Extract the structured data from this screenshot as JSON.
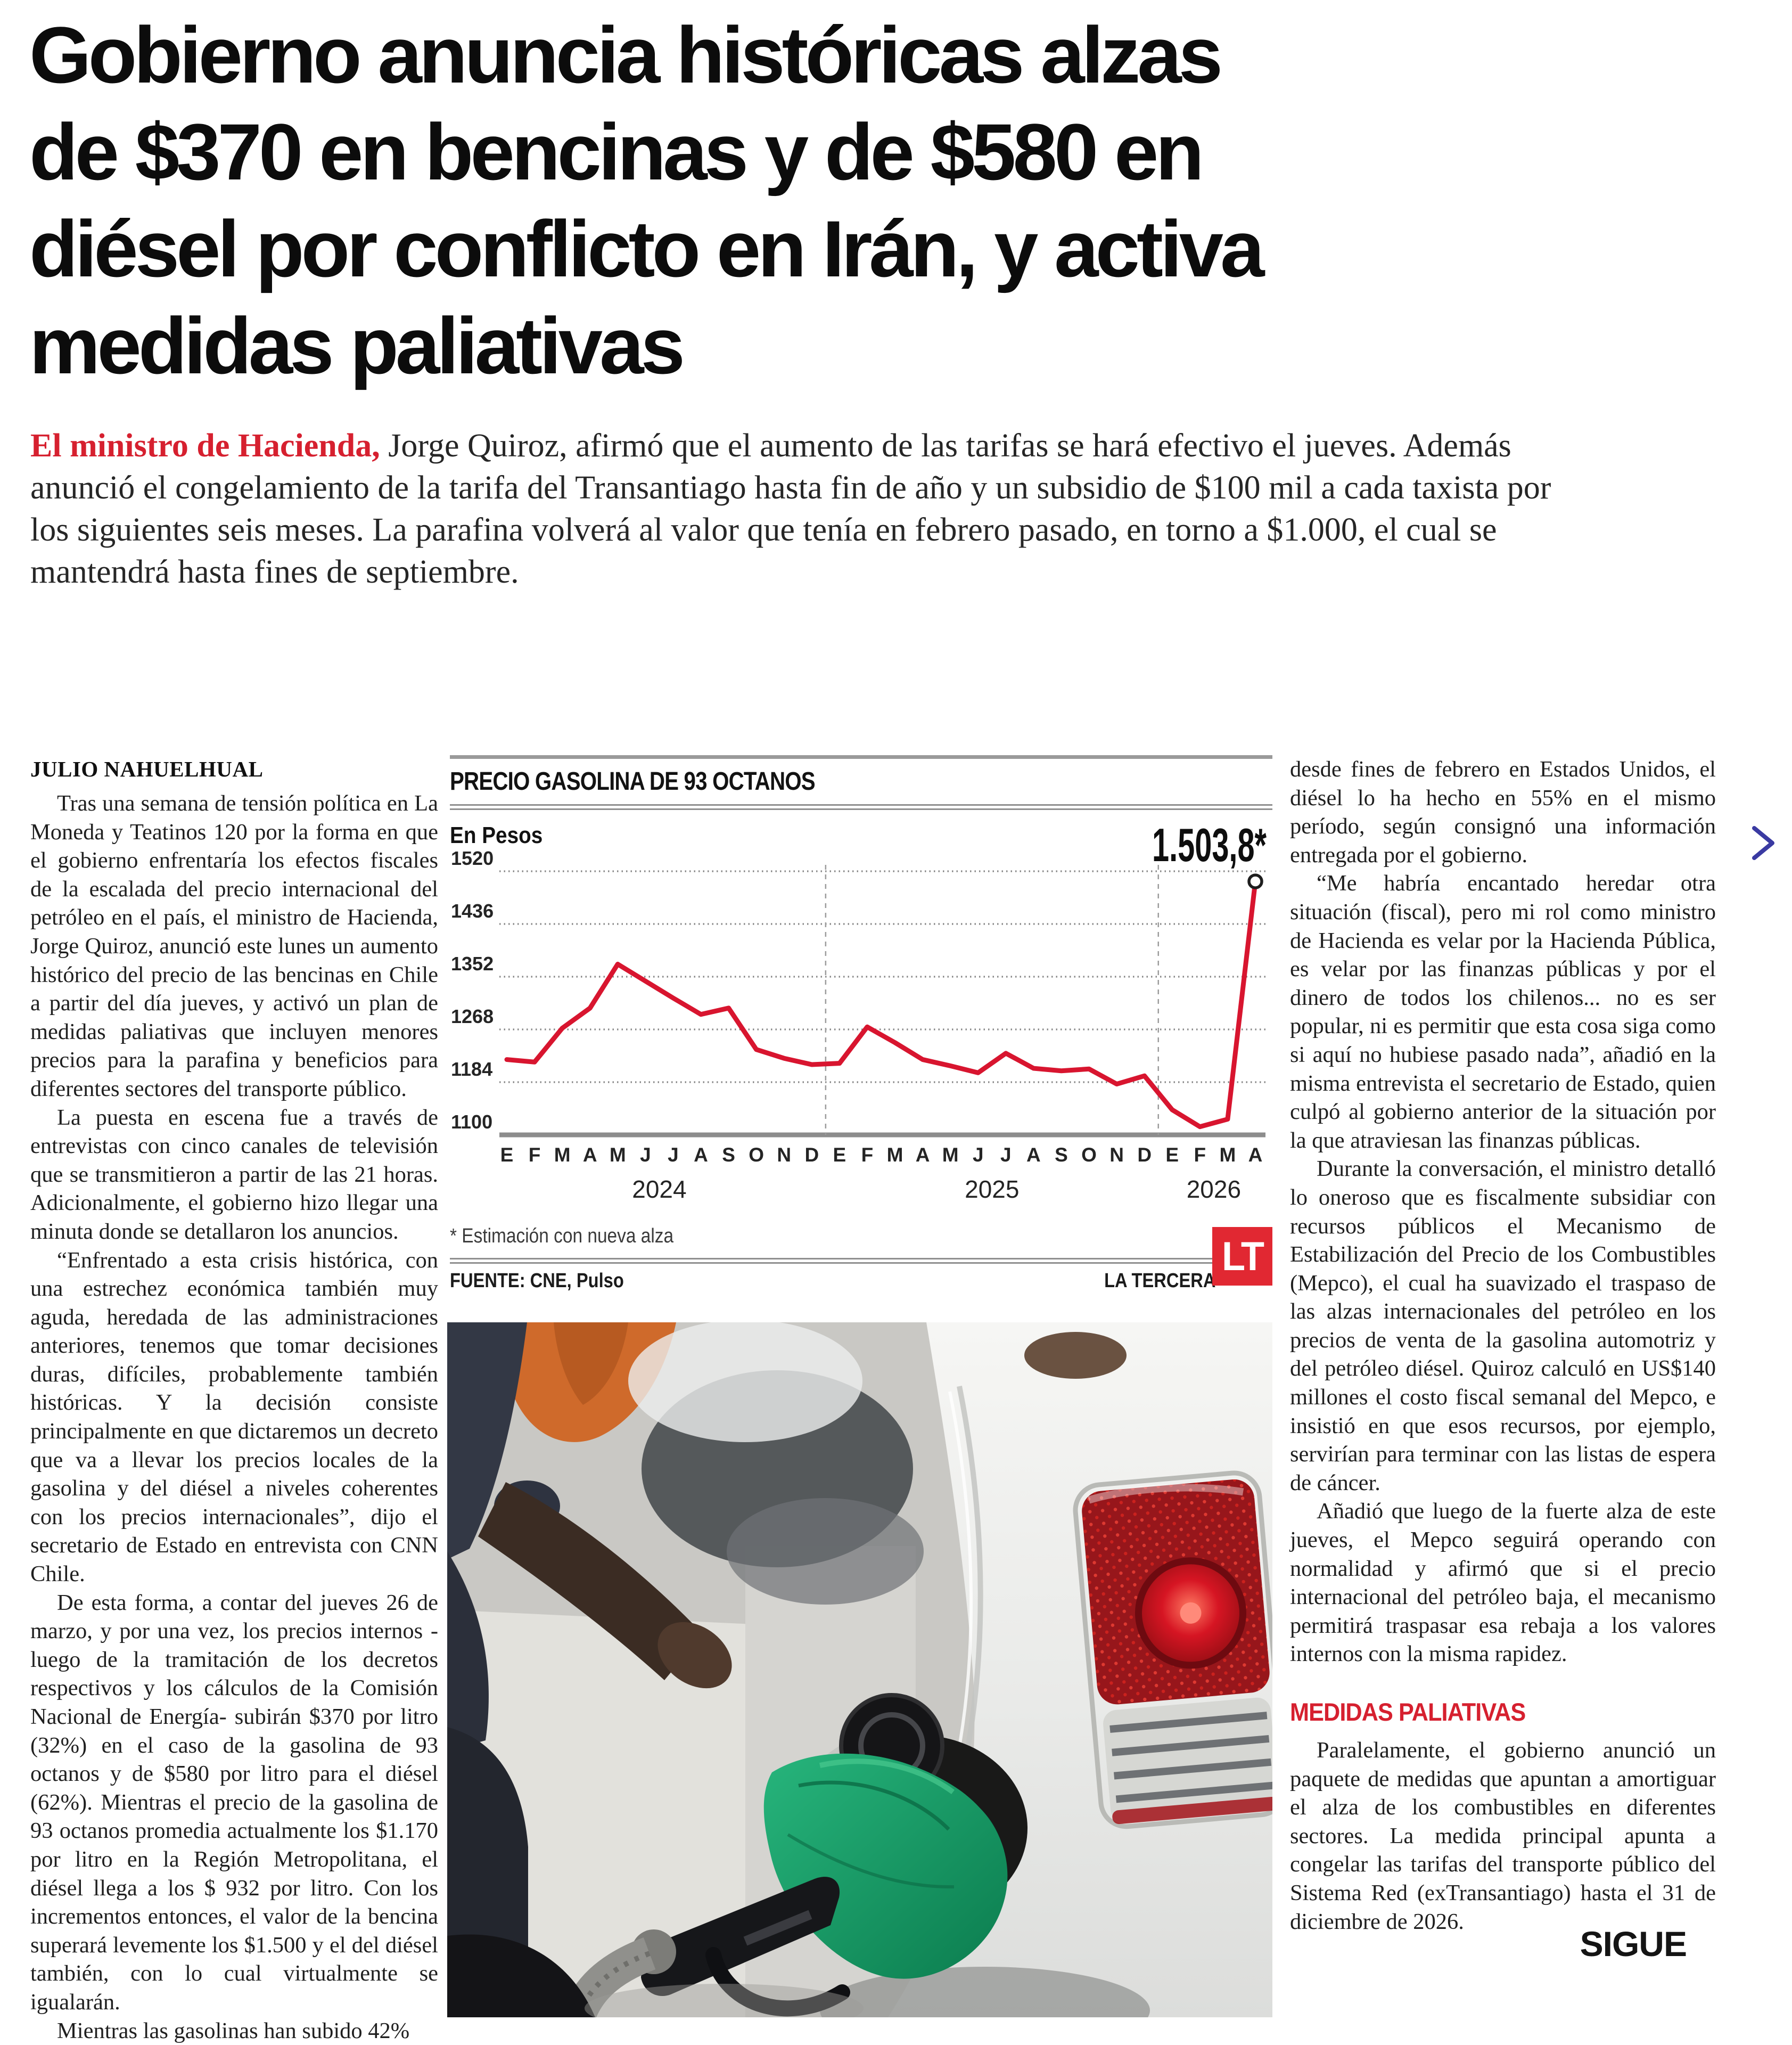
{
  "article": {
    "headline_lines": [
      "Gobierno anuncia históricas alzas",
      "de $370 en bencinas y de $580 en",
      "diésel por conflicto en Irán, y activa",
      "medidas paliativas"
    ],
    "lead_highlight": "El ministro de Hacienda,",
    "lead_rest": "Jorge Quiroz, afirmó que el aumento de las tarifas se hará efectivo el jueves. Además anunció el congelamiento de la tarifa del Transantiago hasta fin de año y un subsidio de $100 mil a cada taxista por los siguientes seis meses. La parafina volverá al valor que tenía en febrero pasado, en torno a $1.000, el cual se mantendrá hasta fines de septiembre.",
    "byline": "JULIO NAHUELHUAL",
    "left_column": {
      "paragraphs": [
        "Tras una semana de tensión política en La Moneda y Teatinos 120 por la forma en que el gobierno enfrentaría los efectos fiscales de la escalada del precio internacional del petróleo en el país, el ministro de Hacienda, Jorge Quiroz, anunció este lunes un aumento histórico del precio de las bencinas en Chile a partir del día jueves, y activó un plan de medidas paliativas que incluyen menores precios para la parafina y beneficios para diferentes sectores del transporte público.",
        "La puesta en escena fue a través de entrevistas con cinco canales de televisión que se transmitieron a partir de las 21 horas. Adicionalmente, el gobierno hizo llegar una minuta donde se detallaron los anuncios.",
        "“Enfrentado a esta crisis histórica, con una estrechez económica también muy aguda, heredada de las administraciones anteriores, tenemos que tomar decisiones duras, difíciles, probablemente también históricas. Y la decisión consiste principalmente en que dictaremos un decreto que va a llevar los precios locales de la gasolina y del diésel a niveles coherentes con los precios internacionales”, dijo el secretario de Estado en entrevista con CNN Chile.",
        "De esta forma, a contar del jueves 26 de marzo, y por una vez, los precios internos -luego de la tramitación de los decretos respectivos y los cálculos de la Comisión Nacional de Energía- subirán $370 por litro (32%) en el caso de la gasolina de 93 octanos y de $580 por litro para el diésel (62%). Mientras el precio de la gasolina de 93 octanos promedia actualmente los $1.170 por litro en la Región Metropolitana, el diésel llega a los $ 932 por litro. Con los incrementos entonces, el valor de la bencina superará levemente los $1.500 y el del diésel también, con lo cual virtualmente se igualarán.",
        "Mientras las gasolinas han subido 42%"
      ]
    },
    "right_column": {
      "paragraphs_top": [
        "desde fines de febrero en Estados Unidos, el diésel lo ha hecho en 55% en el mismo período, según consignó una información entregada por el gobierno.",
        "“Me habría encantado heredar otra situación (fiscal), pero mi rol como ministro de Hacienda es velar por la Hacienda Pública, es velar por las finanzas públicas y por el dinero de todos los chilenos... no es ser popular, ni es permitir que esta cosa siga como si aquí no hubiese pasado nada”, añadió en la misma entrevista el secretario de Estado, quien culpó al gobierno anterior de la situación por la que atraviesan las finanzas públicas.",
        "Durante la conversación, el ministro detalló lo oneroso que es fiscalmente subsidiar con recursos públicos el Mecanismo de Estabilización del Precio de los Combustibles (Mepco), el cual ha suavizado el traspaso de las alzas internacionales del petróleo en los precios de venta de la gasolina automotriz y del petróleo diésel. Quiroz calculó en US$140 millones el costo fiscal semanal del Mepco, e insistió en que esos recursos, por ejemplo, servirían para terminar con las listas de espera de cáncer.",
        "Añadió que luego de la fuerte alza de este jueves, el Mepco seguirá operando con normalidad y afirmó que si el precio internacional del petróleo baja, el mecanismo permitirá traspasar esa rebaja a los valores internos con la misma rapidez."
      ],
      "subhead": "MEDIDAS PALIATIVAS",
      "paragraphs_bottom": [
        "Paralelamente, el gobierno anunció un paquete de medidas que apuntan a amortiguar el alza de los combustibles en diferentes sectores. La medida principal apunta a congelar las tarifas del transporte público del Sistema Red (exTransantiago) hasta el 31 de diciembre de 2026."
      ],
      "continue_label": "SIGUE"
    }
  },
  "chart_data": {
    "type": "line",
    "title": "PRECIO GASOLINA DE 93 OCTANOS",
    "unit_label": "En Pesos",
    "annotation": "1.503,8*",
    "footnote": "* Estimación con nueva alza",
    "source": "FUENTE: CNE, Pulso",
    "credit": "LA TERCERA",
    "credit_logo": "LT",
    "line_color": "#d8152f",
    "ylim": [
      1100,
      1520
    ],
    "yticks": [
      1520,
      1436,
      1352,
      1268,
      1184,
      1100
    ],
    "x_month_labels": [
      "E",
      "F",
      "M",
      "A",
      "M",
      "J",
      "J",
      "A",
      "S",
      "O",
      "N",
      "D",
      "E",
      "F",
      "M",
      "A",
      "M",
      "J",
      "J",
      "A",
      "S",
      "O",
      "N",
      "D",
      "E",
      "F",
      "M",
      "A"
    ],
    "year_labels": [
      {
        "label": "2024",
        "start": 0,
        "end": 11
      },
      {
        "label": "2025",
        "start": 12,
        "end": 23
      },
      {
        "label": "2026",
        "start": 24,
        "end": 27
      }
    ],
    "series": [
      {
        "name": "Precio gasolina 93 octanos (pesos por litro)",
        "values": [
          1220,
          1216,
          1270,
          1302,
          1372,
          1345,
          1318,
          1292,
          1302,
          1236,
          1222,
          1212,
          1214,
          1272,
          1247,
          1220,
          1210,
          1199,
          1230,
          1206,
          1202,
          1205,
          1181,
          1194,
          1140,
          1113,
          1125,
          1503.8
        ]
      }
    ],
    "legend_position": "none",
    "grid": "dotted-horizontal"
  },
  "nav": {
    "next_icon": "chevron-right"
  }
}
